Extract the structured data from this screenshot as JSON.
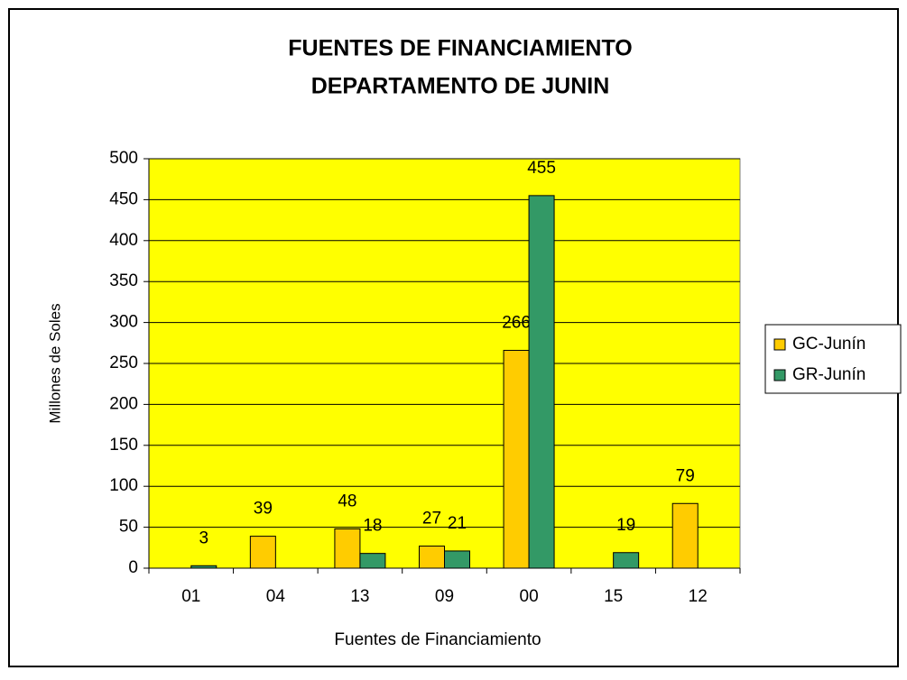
{
  "chart_data": {
    "type": "bar",
    "title": [
      "FUENTES DE FINANCIAMIENTO",
      "DEPARTAMENTO DE JUNIN"
    ],
    "x_label": "Fuentes de Financiamiento",
    "y_label": "Millones de Soles",
    "categories": [
      "01",
      "04",
      "13",
      "09",
      "00",
      "15",
      "12"
    ],
    "series": [
      {
        "name": "GC-Junín",
        "color": "#ffcc00",
        "values": [
          null,
          39,
          48,
          27,
          266,
          null,
          79
        ]
      },
      {
        "name": "GR-Junín",
        "color": "#339966",
        "values": [
          3,
          null,
          18,
          21,
          455,
          19,
          null
        ]
      }
    ],
    "ylim": [
      0,
      500
    ],
    "yticks": [
      0,
      50,
      100,
      150,
      200,
      250,
      300,
      350,
      400,
      450,
      500
    ],
    "grid": true,
    "plot_background": "#ffff00",
    "legend": "right"
  }
}
